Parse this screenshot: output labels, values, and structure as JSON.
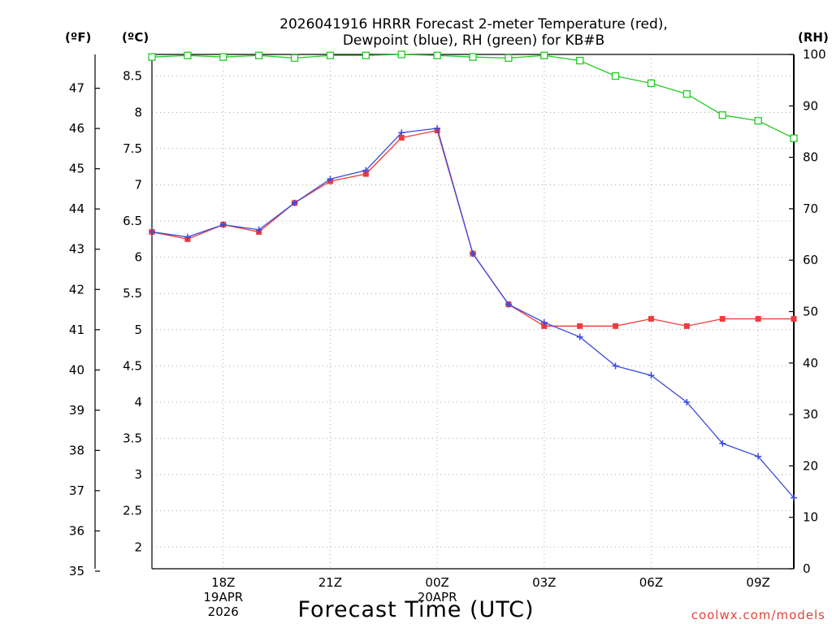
{
  "chart_data": {
    "type": "line",
    "title_lines": [
      "2026041916 HRRR Forecast 2-meter Temperature (red),",
      "Dewpoint (blue), RH (green) for KB#B"
    ],
    "unit_labels": {
      "fahrenheit": "(ºF)",
      "celsius": "(ºC)",
      "rh": "(RH)"
    },
    "xlabel": "Forecast Time (UTC)",
    "credit": "coolwx.com/models",
    "x_ticks": [
      {
        "hour": 2,
        "lines": [
          "18Z",
          "19APR",
          "2026"
        ]
      },
      {
        "hour": 5,
        "lines": [
          "21Z"
        ]
      },
      {
        "hour": 8,
        "lines": [
          "00Z",
          "20APR"
        ]
      },
      {
        "hour": 11,
        "lines": [
          "03Z"
        ]
      },
      {
        "hour": 14,
        "lines": [
          "06Z"
        ]
      },
      {
        "hour": 17,
        "lines": [
          "09Z"
        ]
      }
    ],
    "x_range": [
      0,
      18
    ],
    "x_hours": [
      0,
      1,
      2,
      3,
      4,
      5,
      6,
      7,
      8,
      9,
      10,
      11,
      12,
      13,
      14,
      15,
      16,
      17,
      18
    ],
    "celsius_axis": {
      "range": [
        1.7,
        8.8
      ],
      "ticks": [
        "2",
        "2.5",
        "3",
        "3.5",
        "4",
        "4.5",
        "5",
        "5.5",
        "6",
        "6.5",
        "7",
        "7.5",
        "8",
        "8.5"
      ]
    },
    "fahrenheit_axis": {
      "range": [
        35.06,
        47.84
      ],
      "ticks": [
        "35",
        "36",
        "37",
        "38",
        "39",
        "40",
        "41",
        "42",
        "43",
        "44",
        "45",
        "46",
        "47"
      ]
    },
    "rh_axis": {
      "range": [
        0,
        100
      ],
      "ticks": [
        "0",
        "10",
        "20",
        "30",
        "40",
        "50",
        "60",
        "70",
        "80",
        "90",
        "100"
      ]
    },
    "series": [
      {
        "name": "Temperature",
        "unit": "C",
        "color": "#ef3b3b",
        "marker": "filled-square",
        "values": [
          6.35,
          6.25,
          6.45,
          6.35,
          6.75,
          7.05,
          7.15,
          7.65,
          7.75,
          6.05,
          5.35,
          5.05,
          5.05,
          5.05,
          5.15,
          5.05,
          5.15,
          5.15,
          5.15
        ]
      },
      {
        "name": "Dewpoint",
        "unit": "C",
        "color": "#3b4bdf",
        "marker": "plus",
        "values": [
          6.35,
          6.28,
          6.45,
          6.38,
          6.75,
          7.08,
          7.2,
          7.72,
          7.78,
          6.05,
          5.35,
          5.1,
          4.9,
          4.5,
          4.37,
          4.0,
          3.43,
          3.25,
          2.68
        ]
      },
      {
        "name": "RH",
        "unit": "%",
        "color": "#22cc22",
        "marker": "open-square",
        "values": [
          99.5,
          99.8,
          99.5,
          99.8,
          99.3,
          99.8,
          99.8,
          100,
          99.8,
          99.5,
          99.3,
          99.8,
          98.8,
          95.8,
          94.4,
          92.3,
          88.2,
          87.1,
          83.7
        ]
      }
    ]
  }
}
